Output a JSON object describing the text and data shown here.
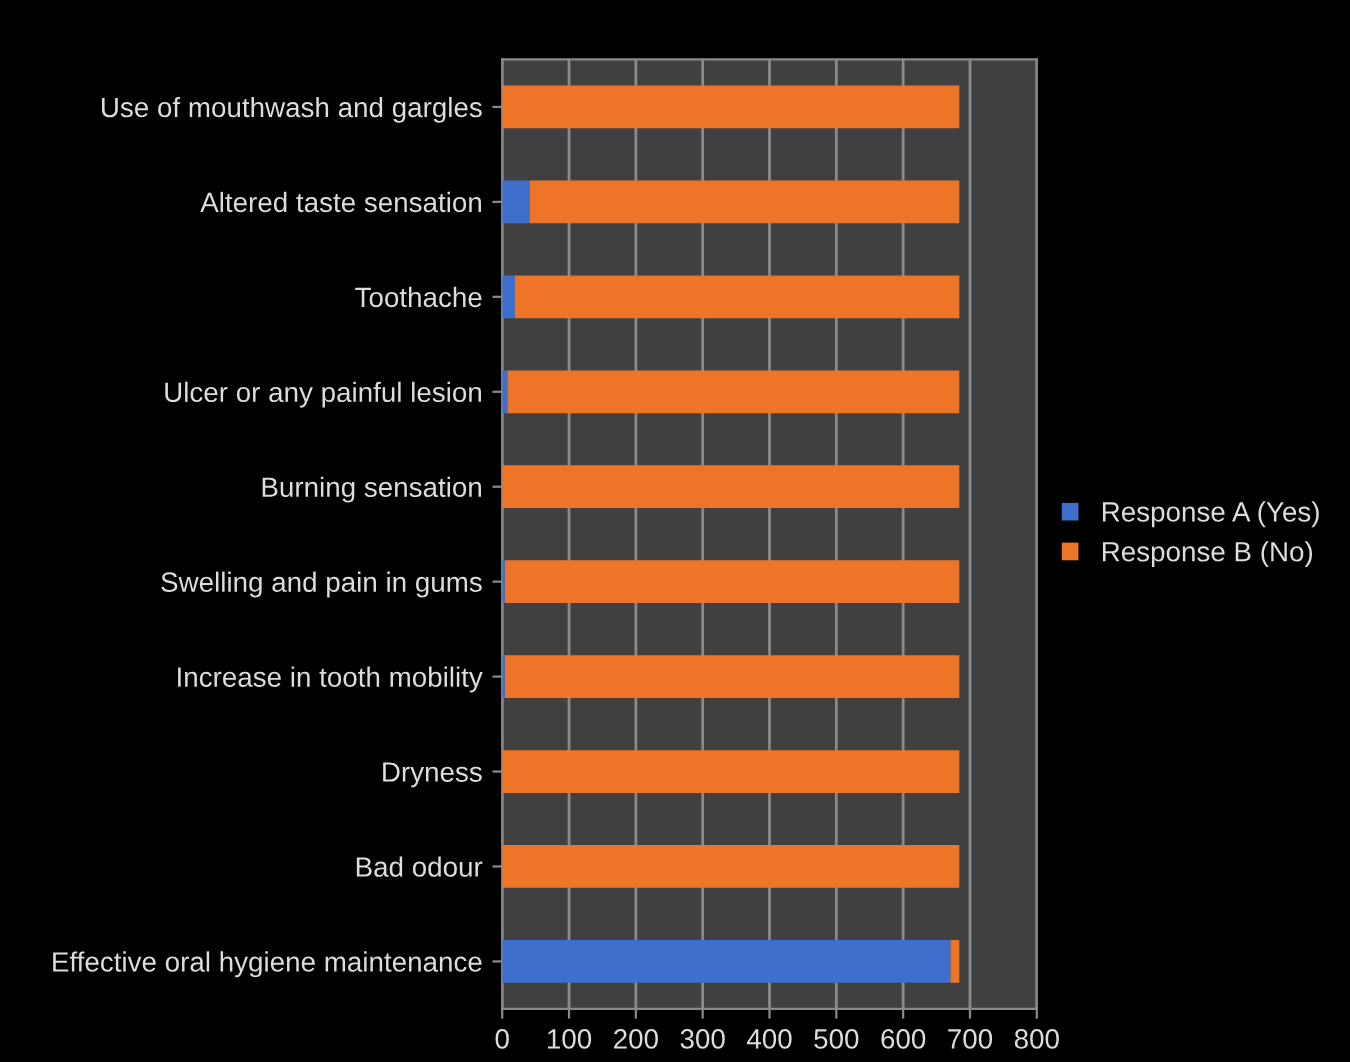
{
  "chart_data": {
    "type": "bar",
    "orientation": "horizontal",
    "stacked": true,
    "categories": [
      "Use of mouthwash and gargles",
      "Altered taste sensation",
      "Toothache",
      "Ulcer or any painful lesion",
      "Burning sensation",
      "Swelling and pain in gums",
      "Increase in tooth mobility",
      "Dryness",
      "Bad odour",
      "Effective oral hygiene maintenance"
    ],
    "series": [
      {
        "name": "Response A (Yes)",
        "color": "#3f6fcc",
        "values": [
          0,
          41,
          19,
          8,
          0,
          4,
          4,
          0,
          0,
          671
        ]
      },
      {
        "name": "Response B (No)",
        "color": "#ee7527",
        "values": [
          684,
          643,
          665,
          676,
          684,
          680,
          680,
          684,
          684,
          13
        ]
      }
    ],
    "xlim": [
      0,
      800
    ],
    "xticks": [
      0,
      100,
      200,
      300,
      400,
      500,
      600,
      700,
      800
    ],
    "grid": "x",
    "legend": "right"
  }
}
